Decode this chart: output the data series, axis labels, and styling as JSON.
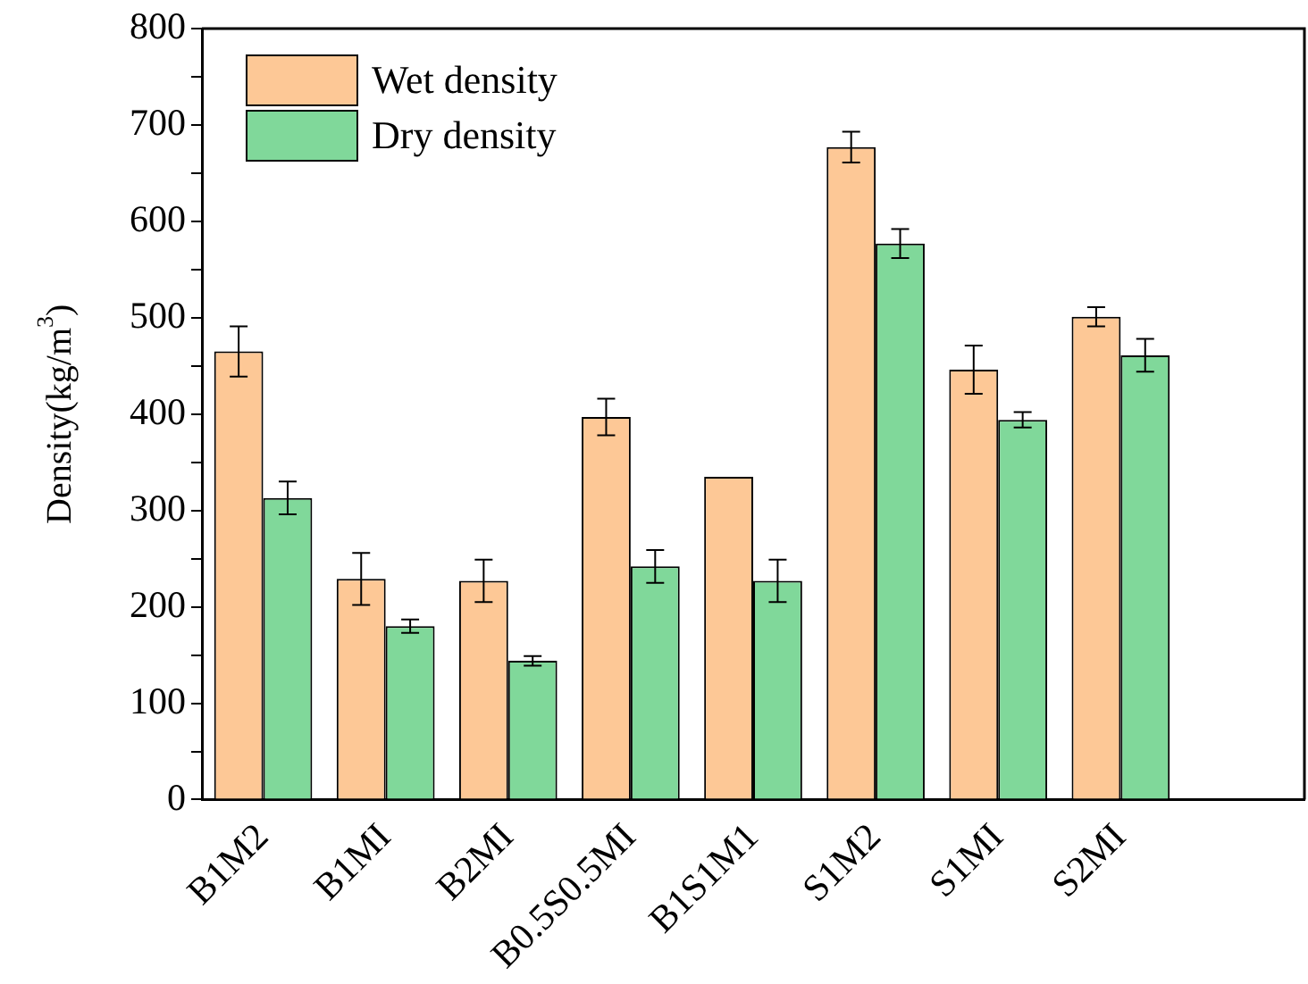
{
  "chart_data": {
    "type": "bar",
    "ylabel": "Density(kg/m$^{3}$)",
    "categories": [
      "B1M2",
      "B1MI",
      "B2MI",
      "B0.5S0.5MI",
      "B1S1M1",
      "S1M2",
      "S1MI",
      "S2MI",
      null
    ],
    "series": [
      {
        "name": "Wet density",
        "color": "#fdc896",
        "values": [
          465,
          229,
          227,
          397,
          335,
          677,
          446,
          501,
          null
        ],
        "errors": [
          26,
          27,
          22,
          19,
          null,
          16,
          25,
          10,
          null
        ]
      },
      {
        "name": "Dry density",
        "color": "#80d89a",
        "values": [
          313,
          180,
          144,
          242,
          227,
          577,
          394,
          461,
          null
        ],
        "errors": [
          17,
          7,
          5,
          17,
          22,
          15,
          8,
          17,
          null
        ]
      }
    ],
    "ylim": [
      0,
      800
    ],
    "yticks": [
      0,
      {
        "value": 50,
        "label": null
      },
      100,
      {
        "value": 150,
        "label": null
      },
      200,
      {
        "value": 250,
        "label": null
      },
      300,
      {
        "value": 350,
        "label": null
      },
      400,
      {
        "value": 450,
        "label": null
      },
      500,
      {
        "value": 550,
        "label": null
      },
      600,
      {
        "value": 650,
        "label": null
      },
      700,
      {
        "value": 750,
        "label": null
      },
      800
    ],
    "grid": false,
    "legend": "top left"
  }
}
